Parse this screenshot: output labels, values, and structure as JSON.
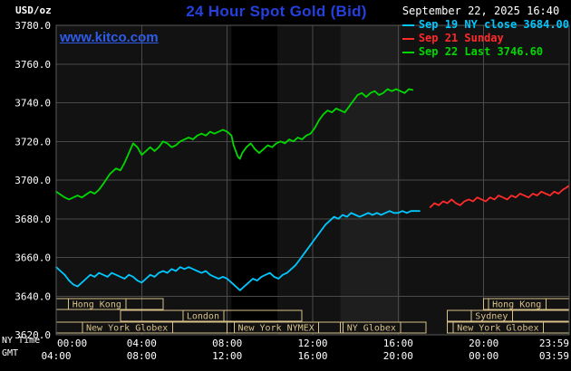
{
  "header": {
    "units_label": "USD/oz",
    "title": "24 Hour Spot Gold (Bid)",
    "datetime": "September 22, 2025 16:40",
    "watermark": "www.kitco.com",
    "legend": [
      {
        "label": "Sep 19 NY close 3684.00",
        "color": "#00c8ff"
      },
      {
        "label": "Sep 21 Sunday",
        "color": "#ff2a2a"
      },
      {
        "label": "Sep 22 Last 3746.60",
        "color": "#00d800"
      }
    ]
  },
  "colors": {
    "title": "#2540dd",
    "link": "#2e5be8",
    "grid": "#4a4a4a",
    "border": "#5a5a5a",
    "axis_text": "#ffffff",
    "session": "#d8c189",
    "plot_bg": "#121212"
  },
  "axes": {
    "y_ticks": [
      "3780.0",
      "3760.0",
      "3740.0",
      "3720.0",
      "3700.0",
      "3680.0",
      "3660.0",
      "3640.0",
      "3620.0"
    ],
    "x_grid_hours": [
      0,
      4,
      8,
      12,
      16,
      20,
      24
    ],
    "x_rows": [
      {
        "label": "NY Time",
        "ticks": [
          "00:00",
          "04:00",
          "08:00",
          "12:00",
          "16:00",
          "20:00",
          "23:59"
        ]
      },
      {
        "label": "GMT",
        "ticks": [
          "04:00",
          "08:00",
          "12:00",
          "16:00",
          "20:00",
          "00:00",
          "03:59"
        ]
      }
    ]
  },
  "chart_data": {
    "type": "line",
    "title": "24 Hour Spot Gold (Bid)",
    "x_unit": "hours, NY time",
    "y_unit": "USD/oz",
    "xlim": [
      0,
      24
    ],
    "ylim": [
      3620,
      3780
    ],
    "y_tick_step": 20,
    "bands": [
      {
        "x0": 8.2,
        "x1": 10.35,
        "color": "#000000"
      },
      {
        "x0": 13.3,
        "x1": 16.1,
        "color": "#1e1e1e"
      }
    ],
    "series": [
      {
        "id": "sep19",
        "name": "Sep 19 NY close",
        "color": "#00c8ff",
        "close": 3684.0,
        "points": [
          [
            0,
            3655
          ],
          [
            0.2,
            3653
          ],
          [
            0.4,
            3651
          ],
          [
            0.6,
            3648
          ],
          [
            0.8,
            3646
          ],
          [
            1,
            3645
          ],
          [
            1.2,
            3647
          ],
          [
            1.4,
            3649
          ],
          [
            1.6,
            3651
          ],
          [
            1.8,
            3650
          ],
          [
            2,
            3652
          ],
          [
            2.2,
            3651
          ],
          [
            2.4,
            3650
          ],
          [
            2.6,
            3652
          ],
          [
            2.8,
            3651
          ],
          [
            3,
            3650
          ],
          [
            3.2,
            3649
          ],
          [
            3.4,
            3651
          ],
          [
            3.6,
            3650
          ],
          [
            3.8,
            3648
          ],
          [
            4,
            3647
          ],
          [
            4.2,
            3649
          ],
          [
            4.4,
            3651
          ],
          [
            4.6,
            3650
          ],
          [
            4.8,
            3652
          ],
          [
            5,
            3653
          ],
          [
            5.2,
            3652
          ],
          [
            5.4,
            3654
          ],
          [
            5.6,
            3653
          ],
          [
            5.8,
            3655
          ],
          [
            6,
            3654
          ],
          [
            6.2,
            3655
          ],
          [
            6.4,
            3654
          ],
          [
            6.6,
            3653
          ],
          [
            6.8,
            3652
          ],
          [
            7,
            3653
          ],
          [
            7.2,
            3651
          ],
          [
            7.4,
            3650
          ],
          [
            7.6,
            3649
          ],
          [
            7.8,
            3650
          ],
          [
            8,
            3649
          ],
          [
            8.2,
            3647
          ],
          [
            8.4,
            3645
          ],
          [
            8.6,
            3643
          ],
          [
            8.8,
            3645
          ],
          [
            9,
            3647
          ],
          [
            9.2,
            3649
          ],
          [
            9.4,
            3648
          ],
          [
            9.6,
            3650
          ],
          [
            9.8,
            3651
          ],
          [
            10,
            3652
          ],
          [
            10.2,
            3650
          ],
          [
            10.4,
            3649
          ],
          [
            10.6,
            3651
          ],
          [
            10.8,
            3652
          ],
          [
            11,
            3654
          ],
          [
            11.2,
            3656
          ],
          [
            11.4,
            3659
          ],
          [
            11.6,
            3662
          ],
          [
            11.8,
            3665
          ],
          [
            12,
            3668
          ],
          [
            12.2,
            3671
          ],
          [
            12.4,
            3674
          ],
          [
            12.6,
            3677
          ],
          [
            12.8,
            3679
          ],
          [
            13,
            3681
          ],
          [
            13.2,
            3680
          ],
          [
            13.4,
            3682
          ],
          [
            13.6,
            3681
          ],
          [
            13.8,
            3683
          ],
          [
            14,
            3682
          ],
          [
            14.2,
            3681
          ],
          [
            14.4,
            3682
          ],
          [
            14.6,
            3683
          ],
          [
            14.8,
            3682
          ],
          [
            15,
            3683
          ],
          [
            15.2,
            3682
          ],
          [
            15.4,
            3683
          ],
          [
            15.6,
            3684
          ],
          [
            15.8,
            3683
          ],
          [
            16,
            3683
          ],
          [
            16.2,
            3684
          ],
          [
            16.4,
            3683
          ],
          [
            16.6,
            3684
          ],
          [
            16.8,
            3684
          ],
          [
            17,
            3684
          ]
        ]
      },
      {
        "id": "sep21",
        "name": "Sep 21 Sunday",
        "color": "#ff2a2a",
        "points": [
          [
            17.5,
            3686
          ],
          [
            17.7,
            3688
          ],
          [
            17.9,
            3687
          ],
          [
            18.1,
            3689
          ],
          [
            18.3,
            3688
          ],
          [
            18.5,
            3690
          ],
          [
            18.7,
            3688
          ],
          [
            18.9,
            3687
          ],
          [
            19.1,
            3689
          ],
          [
            19.3,
            3690
          ],
          [
            19.5,
            3689
          ],
          [
            19.7,
            3691
          ],
          [
            19.9,
            3690
          ],
          [
            20.1,
            3689
          ],
          [
            20.3,
            3691
          ],
          [
            20.5,
            3690
          ],
          [
            20.7,
            3692
          ],
          [
            20.9,
            3691
          ],
          [
            21.1,
            3690
          ],
          [
            21.3,
            3692
          ],
          [
            21.5,
            3691
          ],
          [
            21.7,
            3693
          ],
          [
            21.9,
            3692
          ],
          [
            22.1,
            3691
          ],
          [
            22.3,
            3693
          ],
          [
            22.5,
            3692
          ],
          [
            22.7,
            3694
          ],
          [
            22.9,
            3693
          ],
          [
            23.1,
            3692
          ],
          [
            23.3,
            3694
          ],
          [
            23.5,
            3693
          ],
          [
            23.7,
            3695
          ],
          [
            23.85,
            3696
          ],
          [
            23.98,
            3697
          ]
        ]
      },
      {
        "id": "sep22",
        "name": "Sep 22",
        "color": "#00d800",
        "last": 3746.6,
        "points": [
          [
            0,
            3694
          ],
          [
            0.2,
            3692.5
          ],
          [
            0.4,
            3691
          ],
          [
            0.6,
            3690
          ],
          [
            0.8,
            3691
          ],
          [
            1,
            3692
          ],
          [
            1.2,
            3691
          ],
          [
            1.4,
            3692.5
          ],
          [
            1.6,
            3694
          ],
          [
            1.8,
            3693
          ],
          [
            2,
            3695
          ],
          [
            2.2,
            3698
          ],
          [
            2.5,
            3703
          ],
          [
            2.8,
            3706
          ],
          [
            3,
            3705
          ],
          [
            3.2,
            3709
          ],
          [
            3.4,
            3714
          ],
          [
            3.6,
            3719
          ],
          [
            3.8,
            3717
          ],
          [
            4,
            3713
          ],
          [
            4.2,
            3715
          ],
          [
            4.4,
            3717
          ],
          [
            4.6,
            3715
          ],
          [
            4.8,
            3717
          ],
          [
            5,
            3720
          ],
          [
            5.2,
            3719
          ],
          [
            5.4,
            3717
          ],
          [
            5.6,
            3718
          ],
          [
            5.8,
            3720
          ],
          [
            6,
            3721
          ],
          [
            6.2,
            3722
          ],
          [
            6.4,
            3721
          ],
          [
            6.6,
            3723
          ],
          [
            6.8,
            3724
          ],
          [
            7,
            3723
          ],
          [
            7.2,
            3725
          ],
          [
            7.4,
            3724
          ],
          [
            7.6,
            3725
          ],
          [
            7.8,
            3726
          ],
          [
            8,
            3725
          ],
          [
            8.2,
            3723
          ],
          [
            8.3,
            3718
          ],
          [
            8.5,
            3712
          ],
          [
            8.6,
            3711
          ],
          [
            8.7,
            3714
          ],
          [
            8.9,
            3717
          ],
          [
            9.1,
            3719
          ],
          [
            9.3,
            3716
          ],
          [
            9.5,
            3714
          ],
          [
            9.7,
            3716
          ],
          [
            9.9,
            3718
          ],
          [
            10.1,
            3717
          ],
          [
            10.3,
            3719
          ],
          [
            10.5,
            3720
          ],
          [
            10.7,
            3719
          ],
          [
            10.9,
            3721
          ],
          [
            11.1,
            3720
          ],
          [
            11.3,
            3722
          ],
          [
            11.5,
            3721
          ],
          [
            11.7,
            3723
          ],
          [
            11.9,
            3724
          ],
          [
            12.1,
            3727
          ],
          [
            12.3,
            3731
          ],
          [
            12.5,
            3734
          ],
          [
            12.7,
            3736
          ],
          [
            12.9,
            3735
          ],
          [
            13.1,
            3737
          ],
          [
            13.3,
            3736
          ],
          [
            13.5,
            3735
          ],
          [
            13.7,
            3738
          ],
          [
            13.9,
            3741
          ],
          [
            14.1,
            3744
          ],
          [
            14.3,
            3745
          ],
          [
            14.5,
            3743
          ],
          [
            14.7,
            3745
          ],
          [
            14.9,
            3746
          ],
          [
            15.1,
            3744
          ],
          [
            15.3,
            3745
          ],
          [
            15.5,
            3747
          ],
          [
            15.7,
            3746
          ],
          [
            15.9,
            3747
          ],
          [
            16.1,
            3746
          ],
          [
            16.3,
            3745
          ],
          [
            16.5,
            3747
          ],
          [
            16.67,
            3746.6
          ]
        ]
      }
    ],
    "sessions": [
      {
        "row": 0,
        "start": 0,
        "end": 5,
        "label": "Hong Kong",
        "label_at": 0.75
      },
      {
        "row": 0,
        "start": 20,
        "end": 24,
        "label": "Hong Kong",
        "label_at": 20.4
      },
      {
        "row": 1,
        "start": 3,
        "end": 11.5,
        "label": "London",
        "label_at": 6.1
      },
      {
        "row": 1,
        "start": 18.3,
        "end": 24,
        "label": "Sydney",
        "label_at": 19.6
      },
      {
        "row": 2,
        "start": 0,
        "end": 8,
        "label": "New York Globex",
        "label_at": 1.4
      },
      {
        "row": 2,
        "start": 8,
        "end": 13.3,
        "label": "New York NYMEX",
        "label_at": 8.5
      },
      {
        "row": 2,
        "start": 13.3,
        "end": 17.3,
        "label": "NY Globex",
        "label_at": 13.6
      },
      {
        "row": 2,
        "start": 18.3,
        "end": 24,
        "label": "New York Globex",
        "label_at": 18.75
      }
    ]
  }
}
